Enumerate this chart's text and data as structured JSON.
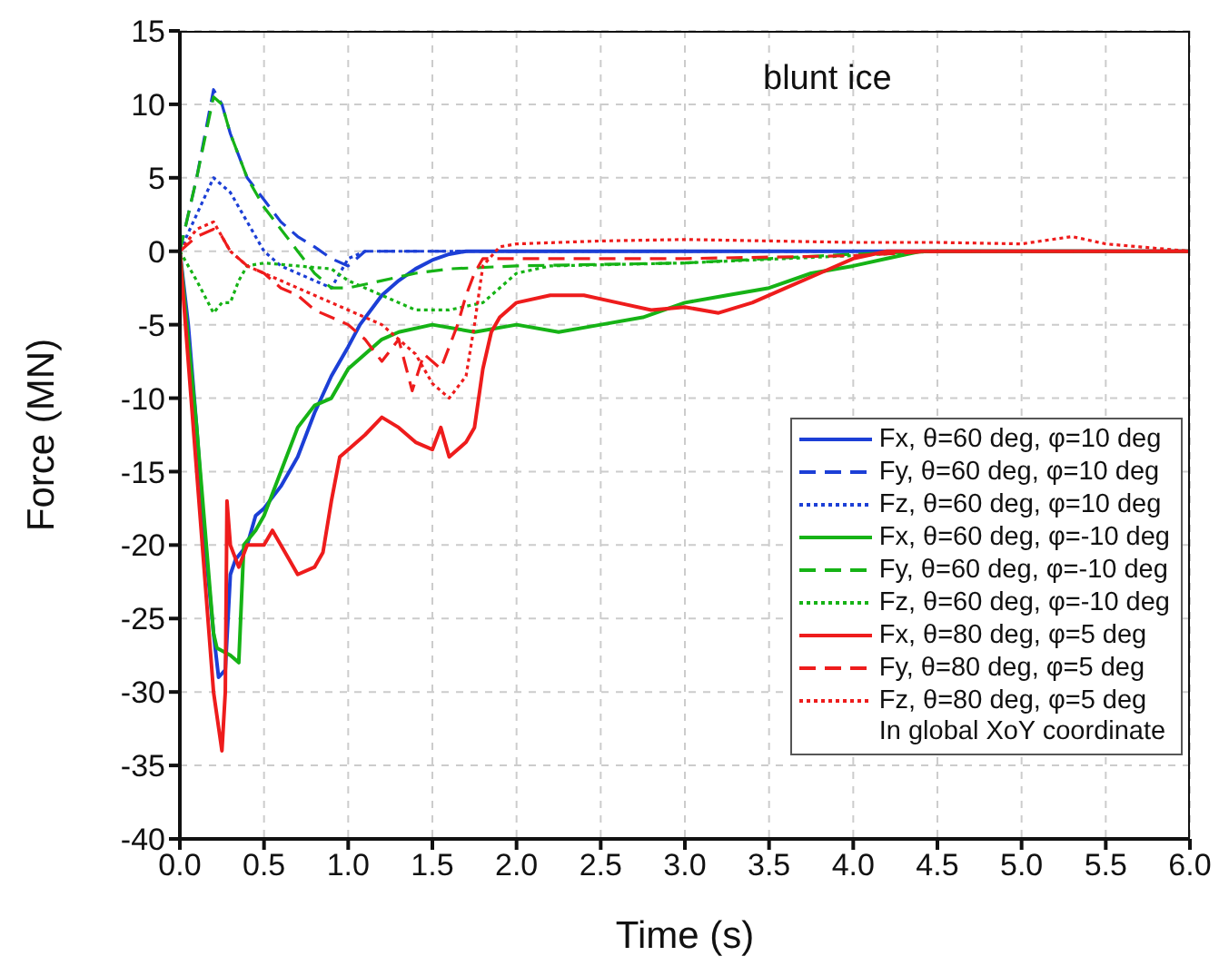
{
  "chart_data": {
    "type": "line",
    "title": "blunt ice",
    "xlabel": "Time (s)",
    "ylabel": "Force (MN)",
    "xlim": [
      0,
      6
    ],
    "xticks": [
      {
        "value": 0,
        "label": "0.0"
      },
      {
        "value": 0.5,
        "label": "0.5"
      },
      {
        "value": 1,
        "label": "1.0"
      },
      {
        "value": 1.5,
        "label": "1.5"
      },
      {
        "value": 2,
        "label": "2.0"
      },
      {
        "value": 2.5,
        "label": "2.5"
      },
      {
        "value": 3,
        "label": "3.0"
      },
      {
        "value": 3.5,
        "label": "3.5"
      },
      {
        "value": 4,
        "label": "4.0"
      },
      {
        "value": 4.5,
        "label": "4.5"
      },
      {
        "value": 5,
        "label": "5.0"
      },
      {
        "value": 5.5,
        "label": "5.5"
      },
      {
        "value": 6,
        "label": "6.0"
      }
    ],
    "ylim": [
      -40,
      15
    ],
    "yticks": [
      -40,
      -35,
      -30,
      -25,
      -20,
      -15,
      -10,
      -5,
      0,
      5,
      10,
      15
    ],
    "grid": true,
    "legend": "bottom right",
    "marker": "none",
    "annotations": [
      "In global XoY coordinate"
    ],
    "series": [
      {
        "name": "Fx, θ=60 deg, φ=10 deg",
        "color": "#1c3fd6",
        "line_style": "solid",
        "x": [
          0,
          0.05,
          0.1,
          0.15,
          0.2,
          0.23,
          0.27,
          0.3,
          0.33,
          0.4,
          0.45,
          0.5,
          0.6,
          0.7,
          0.8,
          0.9,
          1.0,
          1.07,
          1.2,
          1.3,
          1.4,
          1.5,
          1.6,
          1.7,
          2.0,
          3.0,
          4.0,
          5.0,
          6.0
        ],
        "values": [
          0,
          -5,
          -12,
          -20,
          -26,
          -29,
          -28.5,
          -22,
          -21,
          -20,
          -18,
          -17.5,
          -16,
          -14,
          -11,
          -8.5,
          -6.5,
          -5,
          -3,
          -2,
          -1.2,
          -0.6,
          -0.2,
          0,
          0,
          0,
          0,
          0,
          0
        ]
      },
      {
        "name": "Fy, θ=60 deg, φ=10 deg",
        "color": "#1c3fd6",
        "line_style": "dashed",
        "x": [
          0,
          0.1,
          0.2,
          0.25,
          0.3,
          0.4,
          0.5,
          0.6,
          0.7,
          0.8,
          0.9,
          1.0,
          1.1,
          1.5,
          2.0,
          3.0,
          4.0,
          5.0,
          6.0
        ],
        "values": [
          0,
          5,
          11,
          10,
          8,
          5,
          3.5,
          2,
          1,
          0.3,
          -0.5,
          -1,
          0,
          0,
          0,
          0,
          0,
          0,
          0
        ]
      },
      {
        "name": "Fz, θ=60 deg, φ=10 deg",
        "color": "#1c3fd6",
        "line_style": "dotted",
        "x": [
          0,
          0.1,
          0.2,
          0.3,
          0.4,
          0.5,
          0.6,
          0.7,
          0.8,
          0.9,
          1.0,
          1.1,
          1.5,
          2.0,
          3.0,
          4.0,
          5.0,
          6.0
        ],
        "values": [
          0,
          2.5,
          5,
          4,
          2,
          0,
          -1,
          -1.5,
          -2,
          -2.5,
          -0.5,
          0,
          0,
          0,
          0,
          0,
          0,
          0
        ]
      },
      {
        "name": "Fx, θ=60 deg, φ=-10 deg",
        "color": "#16b316",
        "line_style": "solid",
        "x": [
          0,
          0.1,
          0.2,
          0.22,
          0.3,
          0.35,
          0.38,
          0.45,
          0.5,
          0.6,
          0.7,
          0.8,
          0.9,
          1.0,
          1.1,
          1.2,
          1.3,
          1.5,
          1.75,
          2.0,
          2.25,
          2.5,
          2.75,
          3.0,
          3.25,
          3.5,
          3.75,
          4.0,
          4.2,
          4.4,
          5.0,
          6.0
        ],
        "values": [
          0,
          -12,
          -26,
          -27,
          -27.5,
          -28,
          -20,
          -19,
          -18,
          -15,
          -12,
          -10.5,
          -10,
          -8,
          -7,
          -6,
          -5.5,
          -5,
          -5.5,
          -5,
          -5.5,
          -5,
          -4.5,
          -3.5,
          -3,
          -2.5,
          -1.5,
          -1,
          -0.5,
          0,
          0,
          0
        ]
      },
      {
        "name": "Fy, θ=60 deg, φ=-10 deg",
        "color": "#16b316",
        "line_style": "dashed",
        "x": [
          0,
          0.1,
          0.2,
          0.25,
          0.3,
          0.4,
          0.5,
          0.6,
          0.7,
          0.8,
          0.9,
          1.0,
          1.2,
          1.4,
          1.6,
          2.0,
          2.5,
          3.0,
          3.5,
          4.0,
          4.5,
          5.0,
          6.0
        ],
        "values": [
          0,
          5,
          10.5,
          10,
          8,
          5,
          3,
          1.5,
          0,
          -1.5,
          -2.5,
          -2.5,
          -2,
          -1.5,
          -1.2,
          -1,
          -0.9,
          -0.8,
          -0.5,
          -0.2,
          0,
          0,
          0
        ]
      },
      {
        "name": "Fz, θ=60 deg, φ=-10 deg",
        "color": "#16b316",
        "line_style": "dotted",
        "x": [
          0,
          0.1,
          0.2,
          0.25,
          0.3,
          0.35,
          0.4,
          0.5,
          0.7,
          0.9,
          1.0,
          1.2,
          1.4,
          1.6,
          1.8,
          2.0,
          2.2,
          3.0,
          4.0,
          4.5,
          5.0,
          6.0
        ],
        "values": [
          0,
          -2,
          -4.2,
          -3.5,
          -3.5,
          -2,
          -1,
          -0.8,
          -1,
          -1.2,
          -2,
          -3,
          -4,
          -4,
          -3.5,
          -1.5,
          -1,
          -0.8,
          -0.3,
          0,
          0,
          0
        ]
      },
      {
        "name": "Fx, θ=80 deg, φ=5 deg",
        "color": "#ee1c1c",
        "line_style": "solid",
        "x": [
          0,
          0.1,
          0.2,
          0.25,
          0.27,
          0.28,
          0.3,
          0.35,
          0.4,
          0.5,
          0.55,
          0.65,
          0.7,
          0.8,
          0.85,
          0.9,
          0.95,
          1.0,
          1.1,
          1.2,
          1.3,
          1.4,
          1.5,
          1.55,
          1.6,
          1.7,
          1.75,
          1.8,
          1.85,
          1.9,
          2.0,
          2.2,
          2.4,
          2.6,
          2.8,
          3.0,
          3.2,
          3.4,
          3.6,
          3.8,
          4.0,
          4.2,
          4.6,
          5.0,
          6.0
        ],
        "values": [
          0,
          -15,
          -30,
          -34,
          -30,
          -17,
          -20,
          -21.5,
          -20,
          -20,
          -19,
          -21,
          -22,
          -21.5,
          -20.5,
          -17,
          -14,
          -13.5,
          -12.5,
          -11.3,
          -12,
          -13,
          -13.5,
          -12,
          -14,
          -13,
          -12,
          -8,
          -5.5,
          -4.5,
          -3.5,
          -3,
          -3,
          -3.5,
          -4,
          -3.8,
          -4.2,
          -3.5,
          -2.5,
          -1.5,
          -0.5,
          0,
          0,
          0,
          0
        ]
      },
      {
        "name": "Fy, θ=80 deg, φ=5 deg",
        "color": "#ee1c1c",
        "line_style": "dashed",
        "x": [
          0,
          0.1,
          0.2,
          0.25,
          0.3,
          0.4,
          0.5,
          0.6,
          0.7,
          0.8,
          0.9,
          1.0,
          1.1,
          1.2,
          1.3,
          1.38,
          1.45,
          1.55,
          1.65,
          1.7,
          1.75,
          1.8,
          2.0,
          3.0,
          4.0,
          4.5,
          5.0,
          6.0
        ],
        "values": [
          0,
          1,
          1.5,
          1,
          0,
          -1,
          -1.5,
          -2.5,
          -3,
          -4,
          -4.5,
          -5,
          -6,
          -7.5,
          -6,
          -9.5,
          -7,
          -8,
          -5,
          -3,
          -1.5,
          -0.5,
          -0.5,
          -0.5,
          -0.3,
          0,
          0,
          0
        ]
      },
      {
        "name": "Fz, θ=80 deg, φ=5 deg",
        "color": "#ee1c1c",
        "line_style": "dotted",
        "x": [
          0,
          0.1,
          0.2,
          0.3,
          0.4,
          0.6,
          0.8,
          1.0,
          1.2,
          1.4,
          1.5,
          1.6,
          1.7,
          1.75,
          1.8,
          1.9,
          2.0,
          2.5,
          3.0,
          3.5,
          4.0,
          4.5,
          5.0,
          5.3,
          5.5,
          5.7,
          6.0
        ],
        "values": [
          0,
          1.5,
          2,
          0,
          -1,
          -2,
          -3,
          -4,
          -5,
          -7,
          -9,
          -10,
          -8.5,
          -5,
          -1,
          0.3,
          0.5,
          0.7,
          0.8,
          0.7,
          0.6,
          0.6,
          0.5,
          1,
          0.5,
          0.3,
          0
        ]
      }
    ]
  }
}
